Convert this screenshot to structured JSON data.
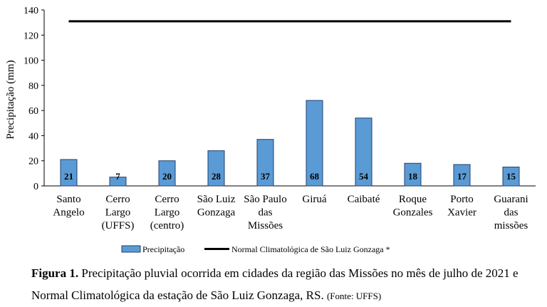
{
  "chart_data": {
    "type": "bar",
    "categories": [
      [
        "Santo",
        "Angelo"
      ],
      [
        "Cerro",
        "Largo",
        "(UFFS)"
      ],
      [
        "Cerro",
        "Largo",
        "(centro)"
      ],
      [
        "São Luiz",
        "Gonzaga"
      ],
      [
        "São Paulo",
        "das",
        "Missões"
      ],
      [
        "Giruá"
      ],
      [
        "Caibaté"
      ],
      [
        "Roque",
        "Gonzales"
      ],
      [
        "Porto",
        "Xavier"
      ],
      [
        "Guarani",
        "das",
        "missões"
      ]
    ],
    "series": [
      {
        "name": "Precipitação",
        "values": [
          21,
          7,
          20,
          28,
          37,
          68,
          54,
          18,
          17,
          15
        ],
        "color": "#5b9bd5"
      }
    ],
    "reference_line": {
      "name": "Normal Climatológica de São Luiz Gonzaga *",
      "value": 131,
      "color": "#000000"
    },
    "ylabel": "Precipitação (mm)",
    "ylim": [
      0,
      140
    ],
    "yticks": [
      0,
      20,
      40,
      60,
      80,
      100,
      120,
      140
    ],
    "grid": false,
    "legend_position": "bottom"
  },
  "caption": {
    "figure_label": "Figura 1.",
    "text": "Precipitação pluvial ocorrida em cidades da região das Missões no mês de julho de 2021 e Normal Climatológica da estação de São Luiz Gonzaga, RS.",
    "source": "(Fonte: UFFS)"
  }
}
